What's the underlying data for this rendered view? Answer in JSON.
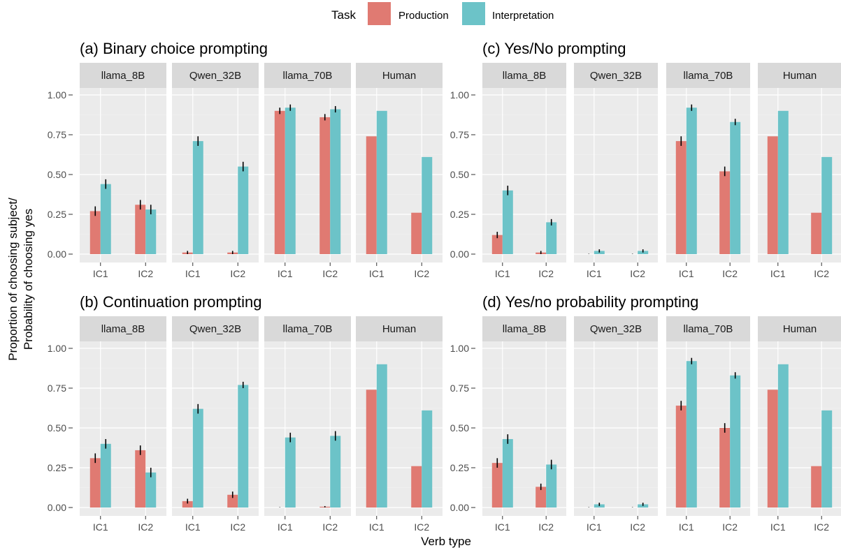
{
  "legend": {
    "title": "Task",
    "items": [
      {
        "label": "Production",
        "color": "#E07A72"
      },
      {
        "label": "Interpretation",
        "color": "#6CC3C8"
      }
    ]
  },
  "axes": {
    "xlabel": "Verb type",
    "ylabel_line1": "Proportion of choosing subject/",
    "ylabel_line2": "Probability of choosing yes"
  },
  "chart_data": [
    {
      "type": "bar",
      "title": "(a) Binary choice prompting",
      "panel": "top-left",
      "ylim": [
        0,
        1
      ],
      "yticks": [
        "0.00",
        "0.25",
        "0.50",
        "0.75",
        "1.00"
      ],
      "categories": [
        "IC1",
        "IC2"
      ],
      "facets": [
        {
          "name": "llama_8B",
          "series": [
            {
              "name": "Production",
              "values": [
                0.27,
                0.31
              ],
              "err": [
                0.03,
                0.03
              ]
            },
            {
              "name": "Interpretation",
              "values": [
                0.44,
                0.28
              ],
              "err": [
                0.03,
                0.03
              ]
            }
          ]
        },
        {
          "name": "Qwen_32B",
          "series": [
            {
              "name": "Production",
              "values": [
                0.01,
                0.01
              ],
              "err": [
                0.01,
                0.01
              ]
            },
            {
              "name": "Interpretation",
              "values": [
                0.71,
                0.55
              ],
              "err": [
                0.03,
                0.03
              ]
            }
          ]
        },
        {
          "name": "llama_70B",
          "series": [
            {
              "name": "Production",
              "values": [
                0.9,
                0.86
              ],
              "err": [
                0.02,
                0.02
              ]
            },
            {
              "name": "Interpretation",
              "values": [
                0.92,
                0.91
              ],
              "err": [
                0.02,
                0.02
              ]
            }
          ]
        },
        {
          "name": "Human",
          "series": [
            {
              "name": "Production",
              "values": [
                0.74,
                0.26
              ],
              "err": null
            },
            {
              "name": "Interpretation",
              "values": [
                0.9,
                0.61
              ],
              "err": null
            }
          ]
        }
      ]
    },
    {
      "type": "bar",
      "title": "(c) Yes/No prompting",
      "panel": "top-right",
      "ylim": [
        0,
        1
      ],
      "yticks": [
        "0.00",
        "0.25",
        "0.50",
        "0.75",
        "1.00"
      ],
      "categories": [
        "IC1",
        "IC2"
      ],
      "facets": [
        {
          "name": "llama_8B",
          "series": [
            {
              "name": "Production",
              "values": [
                0.12,
                0.01
              ],
              "err": [
                0.02,
                0.01
              ]
            },
            {
              "name": "Interpretation",
              "values": [
                0.4,
                0.2
              ],
              "err": [
                0.03,
                0.02
              ]
            }
          ]
        },
        {
          "name": "Qwen_32B",
          "series": [
            {
              "name": "Production",
              "values": [
                0.0,
                0.0
              ],
              "err": [
                0.002,
                0.002
              ]
            },
            {
              "name": "Interpretation",
              "values": [
                0.02,
                0.02
              ],
              "err": [
                0.01,
                0.01
              ]
            }
          ]
        },
        {
          "name": "llama_70B",
          "series": [
            {
              "name": "Production",
              "values": [
                0.71,
                0.52
              ],
              "err": [
                0.03,
                0.03
              ]
            },
            {
              "name": "Interpretation",
              "values": [
                0.92,
                0.83
              ],
              "err": [
                0.02,
                0.02
              ]
            }
          ]
        },
        {
          "name": "Human",
          "series": [
            {
              "name": "Production",
              "values": [
                0.74,
                0.26
              ],
              "err": null
            },
            {
              "name": "Interpretation",
              "values": [
                0.9,
                0.61
              ],
              "err": null
            }
          ]
        }
      ]
    },
    {
      "type": "bar",
      "title": "(b) Continuation prompting",
      "panel": "bottom-left",
      "ylim": [
        0,
        1
      ],
      "yticks": [
        "0.00",
        "0.25",
        "0.50",
        "0.75",
        "1.00"
      ],
      "categories": [
        "IC1",
        "IC2"
      ],
      "facets": [
        {
          "name": "llama_8B",
          "series": [
            {
              "name": "Production",
              "values": [
                0.31,
                0.36
              ],
              "err": [
                0.03,
                0.03
              ]
            },
            {
              "name": "Interpretation",
              "values": [
                0.4,
                0.22
              ],
              "err": [
                0.03,
                0.03
              ]
            }
          ]
        },
        {
          "name": "Qwen_32B",
          "series": [
            {
              "name": "Production",
              "values": [
                0.04,
                0.08
              ],
              "err": [
                0.015,
                0.02
              ]
            },
            {
              "name": "Interpretation",
              "values": [
                0.62,
                0.77
              ],
              "err": [
                0.03,
                0.02
              ]
            }
          ]
        },
        {
          "name": "llama_70B",
          "series": [
            {
              "name": "Production",
              "values": [
                0.0,
                0.005
              ],
              "err": [
                0.002,
                0.004
              ]
            },
            {
              "name": "Interpretation",
              "values": [
                0.44,
                0.45
              ],
              "err": [
                0.03,
                0.03
              ]
            }
          ]
        },
        {
          "name": "Human",
          "series": [
            {
              "name": "Production",
              "values": [
                0.74,
                0.26
              ],
              "err": null
            },
            {
              "name": "Interpretation",
              "values": [
                0.9,
                0.61
              ],
              "err": null
            }
          ]
        }
      ]
    },
    {
      "type": "bar",
      "title": "(d) Yes/no probability prompting",
      "panel": "bottom-right",
      "ylim": [
        0,
        1
      ],
      "yticks": [
        "0.00",
        "0.25",
        "0.50",
        "0.75",
        "1.00"
      ],
      "categories": [
        "IC1",
        "IC2"
      ],
      "facets": [
        {
          "name": "llama_8B",
          "series": [
            {
              "name": "Production",
              "values": [
                0.28,
                0.13
              ],
              "err": [
                0.03,
                0.02
              ]
            },
            {
              "name": "Interpretation",
              "values": [
                0.43,
                0.27
              ],
              "err": [
                0.03,
                0.03
              ]
            }
          ]
        },
        {
          "name": "Qwen_32B",
          "series": [
            {
              "name": "Production",
              "values": [
                0.0,
                0.0
              ],
              "err": [
                0.002,
                0.002
              ]
            },
            {
              "name": "Interpretation",
              "values": [
                0.02,
                0.02
              ],
              "err": [
                0.01,
                0.01
              ]
            }
          ]
        },
        {
          "name": "llama_70B",
          "series": [
            {
              "name": "Production",
              "values": [
                0.64,
                0.5
              ],
              "err": [
                0.03,
                0.03
              ]
            },
            {
              "name": "Interpretation",
              "values": [
                0.92,
                0.83
              ],
              "err": [
                0.02,
                0.02
              ]
            }
          ]
        },
        {
          "name": "Human",
          "series": [
            {
              "name": "Production",
              "values": [
                0.74,
                0.26
              ],
              "err": null
            },
            {
              "name": "Interpretation",
              "values": [
                0.9,
                0.61
              ],
              "err": null
            }
          ]
        }
      ]
    }
  ]
}
